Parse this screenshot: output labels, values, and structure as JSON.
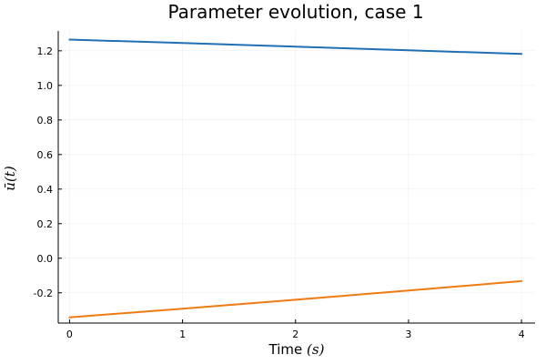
{
  "chart_data": {
    "type": "line",
    "title": "Parameter evolution, case 1",
    "xlabel_text": "Time",
    "xlabel_unit": "(s)",
    "ylabel": "ū(t)",
    "xlim": [
      -0.1,
      4.12
    ],
    "ylim": [
      -0.375,
      1.315
    ],
    "x_ticks": [
      0,
      1,
      2,
      3,
      4
    ],
    "x_tick_labels": [
      "0",
      "1",
      "2",
      "3",
      "4"
    ],
    "y_ticks": [
      -0.2,
      0.0,
      0.2,
      0.4,
      0.6,
      0.8,
      1.0,
      1.2
    ],
    "y_tick_labels": [
      "-0.2",
      "0.0",
      "0.2",
      "0.4",
      "0.6",
      "0.8",
      "1.0",
      "1.2"
    ],
    "grid": true,
    "legend": "none",
    "series": [
      {
        "color": "#1f6fb4",
        "x": [
          0,
          1,
          2,
          3,
          4
        ],
        "y": [
          1.265,
          1.245,
          1.224,
          1.203,
          1.182
        ]
      },
      {
        "color": "#ee7a12",
        "x": [
          0,
          1,
          2,
          3,
          4
        ],
        "y": [
          -0.342,
          -0.292,
          -0.24,
          -0.187,
          -0.132
        ]
      }
    ]
  }
}
